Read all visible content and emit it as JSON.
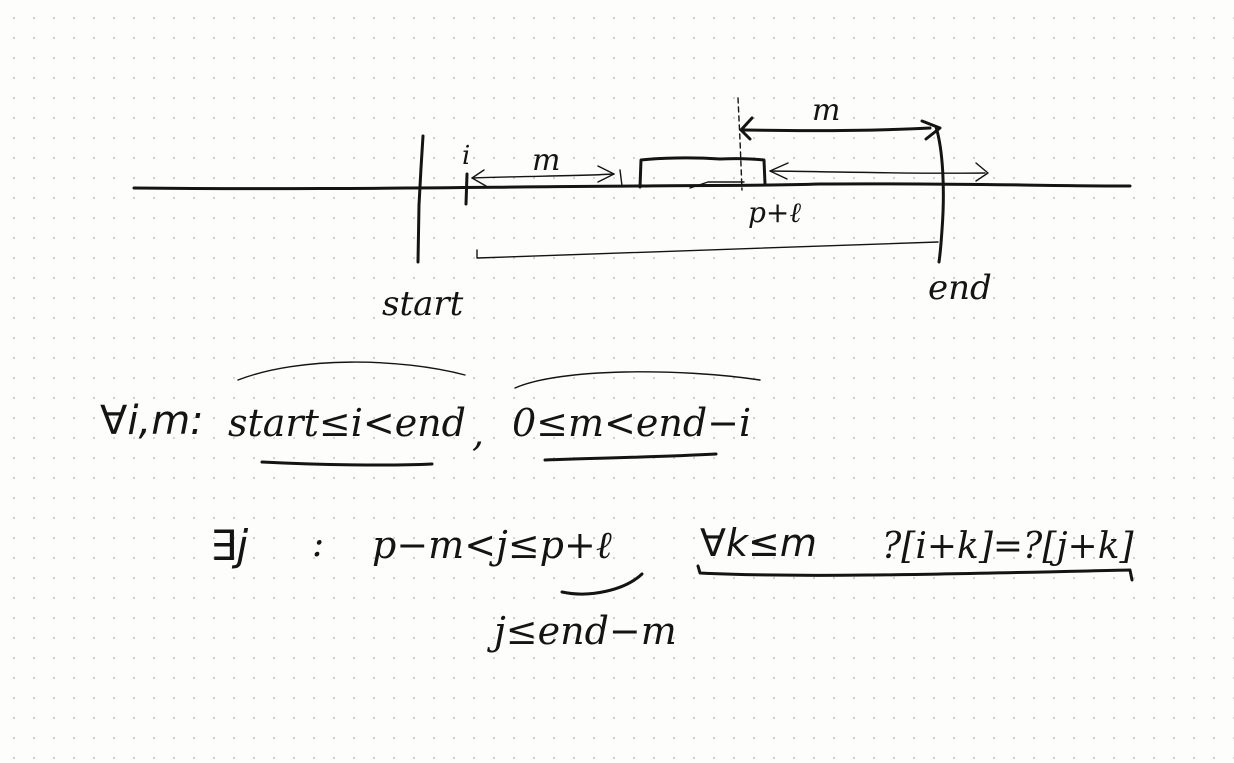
{
  "diagram": {
    "labels": {
      "start": "start",
      "end": "end",
      "i": "i",
      "m_top": "m",
      "m_left": "m",
      "p_plus_l": "p+ℓ"
    }
  },
  "formulas": {
    "line1": {
      "quantifier": "∀i,m:",
      "cond1": "start≤i<end",
      "sep": ",",
      "cond2": "0≤m<end−i"
    },
    "line2": {
      "exists": "∃j",
      "colon": ":",
      "range": "p−m<j≤p+ℓ",
      "forall": "∀k≤m",
      "equality": "?[i+k]=?[j+k]"
    },
    "line3": {
      "constraint": "j≤end−m"
    }
  },
  "colors": {
    "ink": "#141414",
    "paper": "#fdfdfc",
    "dot_grid": "#cfcfcf"
  }
}
